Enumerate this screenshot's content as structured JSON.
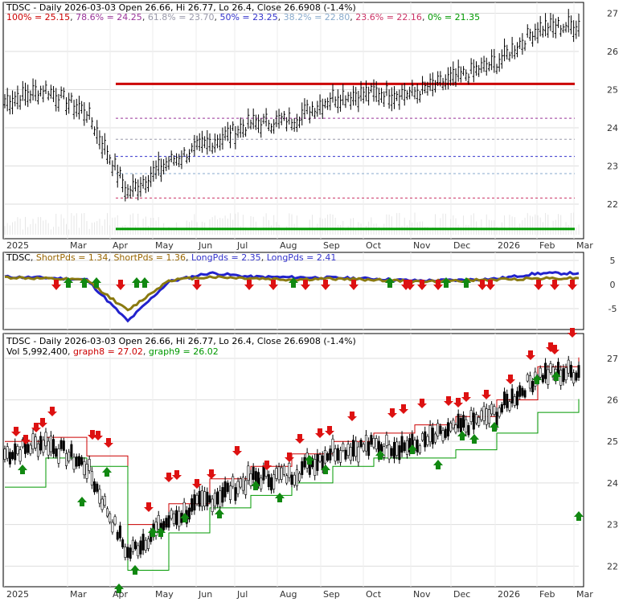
{
  "chart_data": [
    {
      "type": "line",
      "panel": "price-fibonacci",
      "title": "TDSC - Daily 2026-03-03 Open 26.66, Hi 26.77, Lo 26.4, Close 26.6908 (-1.4%)",
      "title_parts": {
        "ticker": "TDSC",
        "rest": " - Daily 2026-03-03 Open 26.66, Hi 26.77, Lo 26.4, Close 26.6908 (-1.4%)"
      },
      "fib_levels": [
        {
          "label": "100%",
          "value": 25.15,
          "text": "100% = 25.15",
          "color": "#cc0000",
          "style": "solid"
        },
        {
          "label": "78.6%",
          "value": 24.25,
          "text": "78.6% = 24.25",
          "color": "#993399",
          "style": "dash"
        },
        {
          "label": "61.8%",
          "value": 23.7,
          "text": "61.8% = 23.70",
          "color": "#9999aa",
          "style": "dash"
        },
        {
          "label": "50%",
          "value": 23.25,
          "text": "50% = 23.25",
          "color": "#3333cc",
          "style": "dash"
        },
        {
          "label": "38.2%",
          "value": 22.8,
          "text": "38.2% = 22.80",
          "color": "#88aacc",
          "style": "dash"
        },
        {
          "label": "23.6%",
          "value": 22.16,
          "text": "23.6% = 22.16",
          "color": "#cc3366",
          "style": "dash"
        },
        {
          "label": "0%",
          "value": 21.35,
          "text": "0% = 21.35",
          "color": "#009900",
          "style": "solid"
        }
      ],
      "y_ticks": [
        "27",
        "26",
        "25",
        "24",
        "23",
        "22"
      ],
      "ylim": [
        21.2,
        27.2
      ],
      "x_ticks": [
        "2025",
        "Mar",
        "Apr",
        "May",
        "Jun",
        "Jul",
        "Aug",
        "Sep",
        "Oct",
        "Nov",
        "Dec",
        "2026",
        "Feb",
        "Mar"
      ],
      "series": [
        {
          "type": "ohlc",
          "x": [
            "2025-01",
            "2025-02",
            "2025-03",
            "2025-04",
            "2025-05",
            "2025-06",
            "2025-07",
            "2025-08",
            "2025-09",
            "2025-10",
            "2025-11",
            "2025-12",
            "2026-01",
            "2026-02",
            "2026-03"
          ],
          "values": [
            24.7,
            25.0,
            24.4,
            22.3,
            23.1,
            23.6,
            24.1,
            24.2,
            24.8,
            24.9,
            24.9,
            25.3,
            25.7,
            26.6,
            26.69
          ]
        }
      ]
    },
    {
      "type": "line",
      "panel": "short-long-periods",
      "legend": [
        {
          "text": "TDSC",
          "color": "#000000"
        },
        {
          "text": "ShortPds = 1.34",
          "color": "#996600"
        },
        {
          "text": "ShortPds = 1.36",
          "color": "#996600"
        },
        {
          "text": "LongPds = 2.35",
          "color": "#3333cc"
        },
        {
          "text": "LongPds = 2.41",
          "color": "#3333cc"
        }
      ],
      "y_ticks": [
        "5",
        "0",
        "-5"
      ],
      "ylim": [
        -8.5,
        6
      ],
      "series": [
        {
          "name": "LongPds",
          "color": "#2222cc",
          "values": [
            1.6,
            1.4,
            1.0,
            -7.6,
            0.6,
            2.4,
            1.6,
            1.5,
            1.4,
            1.2,
            0.8,
            0.9,
            1.2,
            2.3,
            2.35
          ]
        },
        {
          "name": "ShortPds",
          "color": "#8a7a10",
          "values": [
            1.5,
            1.2,
            0.9,
            -5.4,
            0.9,
            1.6,
            1.3,
            1.0,
            1.2,
            1.0,
            0.6,
            0.8,
            1.0,
            1.3,
            1.34
          ]
        }
      ]
    },
    {
      "type": "line",
      "panel": "price-volume-trail",
      "title": "TDSC - Daily 2026-03-03 Open 26.66, Hi 26.77, Lo 26.4, Close 26.6908 (-1.4%)",
      "legend": [
        {
          "text": "Vol 5,992,400",
          "color": "#000000"
        },
        {
          "text": "graph8 = 27.02",
          "color": "#cc0000"
        },
        {
          "text": "graph9 = 26.02",
          "color": "#009900"
        }
      ],
      "y_ticks": [
        "27",
        "26",
        "25",
        "24",
        "23",
        "22"
      ],
      "ylim": [
        21.6,
        27.5
      ],
      "x_ticks": [
        "2025",
        "Mar",
        "Apr",
        "May",
        "Jun",
        "Jul",
        "Aug",
        "Sep",
        "Oct",
        "Nov",
        "Dec",
        "2026",
        "Feb",
        "Mar"
      ],
      "series": [
        {
          "name": "graph8",
          "color": "#cc0000",
          "values": [
            25.0,
            25.1,
            24.65,
            23.0,
            23.5,
            24.1,
            24.4,
            24.7,
            25.0,
            25.2,
            25.4,
            25.6,
            26.0,
            26.8,
            27.02
          ]
        },
        {
          "name": "graph9",
          "color": "#009900",
          "values": [
            23.9,
            24.6,
            24.4,
            21.9,
            22.8,
            23.4,
            23.7,
            24.0,
            24.4,
            24.6,
            24.6,
            24.8,
            25.2,
            25.7,
            26.02
          ]
        }
      ]
    }
  ]
}
